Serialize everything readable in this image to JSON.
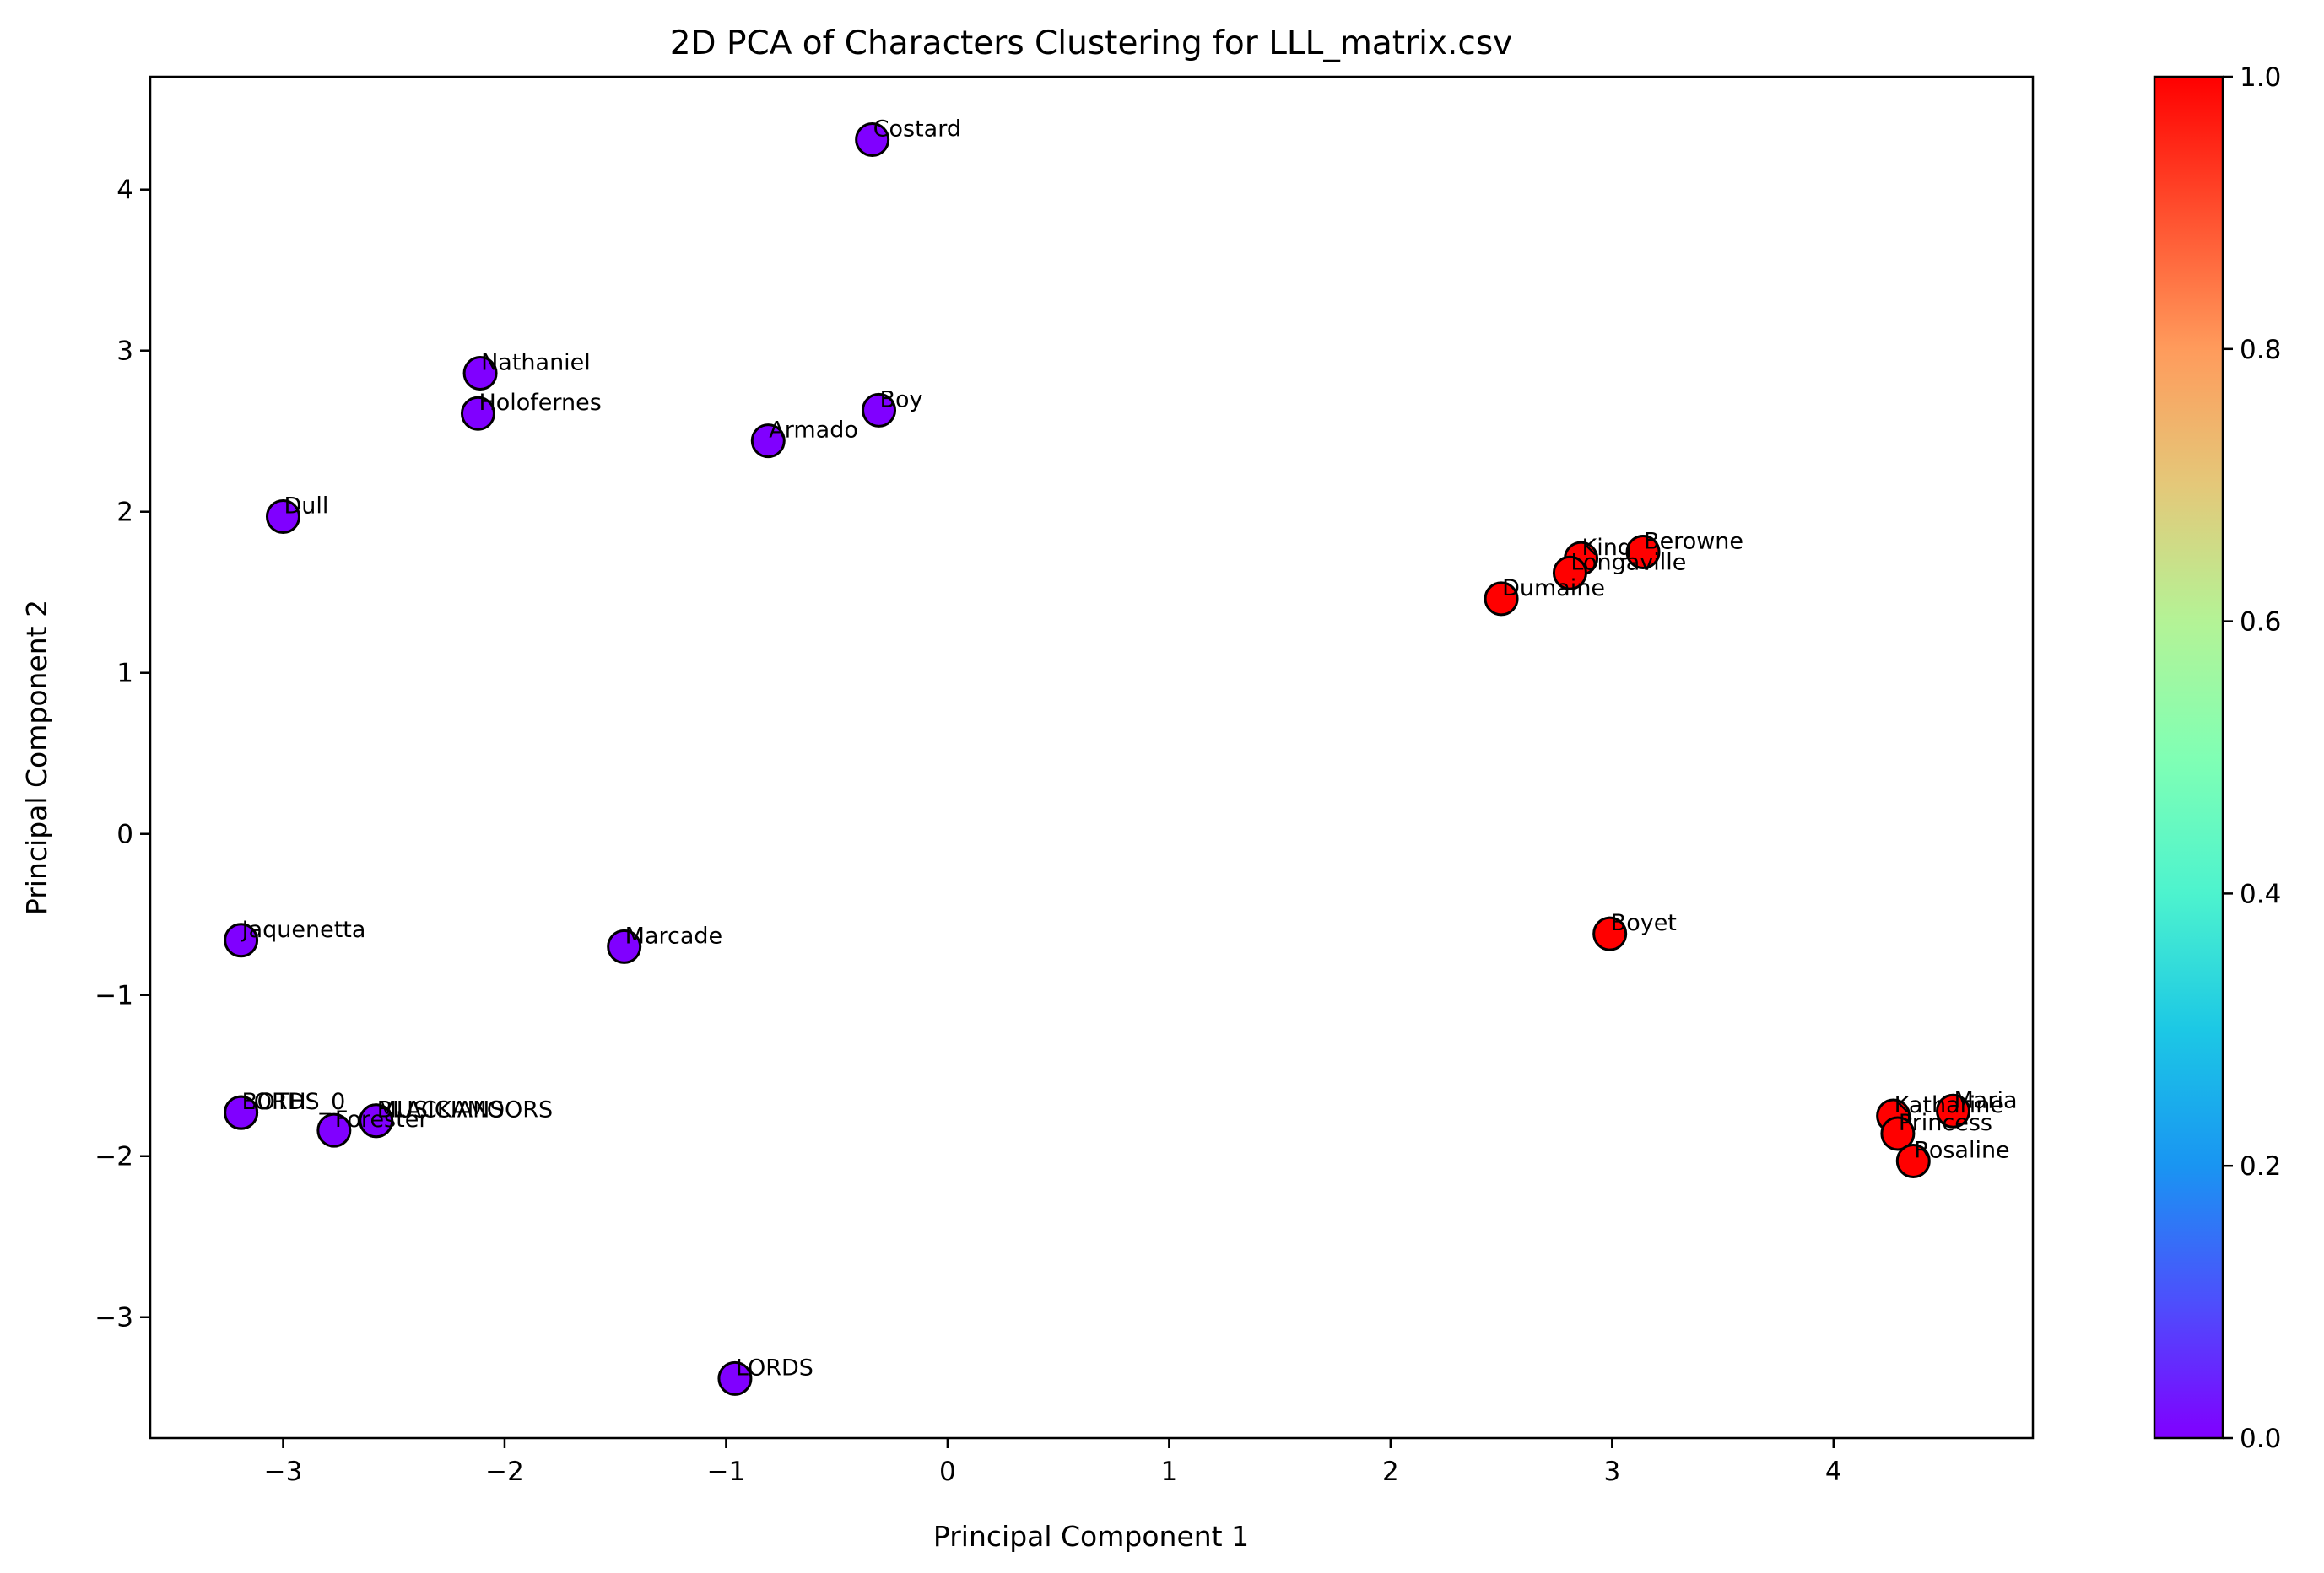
{
  "chart_data": {
    "type": "scatter",
    "title": "2D PCA of Characters Clustering for LLL_matrix.csv",
    "xlabel": "Principal Component 1",
    "ylabel": "Principal Component 2",
    "xlim": [
      -3.6,
      4.9
    ],
    "ylim": [
      -3.75,
      4.7
    ],
    "xticks": [
      -3,
      -2,
      -1,
      0,
      1,
      2,
      3,
      4
    ],
    "xtick_labels": [
      "−3",
      "−2",
      "−1",
      "0",
      "1",
      "2",
      "3",
      "4"
    ],
    "yticks": [
      -3,
      -2,
      -1,
      0,
      1,
      2,
      3,
      4
    ],
    "ytick_labels": [
      "−3",
      "−2",
      "−1",
      "0",
      "1",
      "2",
      "3",
      "4"
    ],
    "grid": false,
    "colorbar": {
      "colormap": "rainbow",
      "range": [
        0,
        1
      ],
      "ticks": [
        0,
        0.2,
        0.4,
        0.6,
        0.8,
        1.0
      ],
      "tick_labels": [
        "0.0",
        "0.2",
        "0.4",
        "0.6",
        "0.8",
        "1.0"
      ]
    },
    "cluster_colors": {
      "0": "#8000ff",
      "1": "#ff0000"
    },
    "points": [
      {
        "label": "Costard",
        "x": -0.34,
        "y": 4.31,
        "cluster": 0
      },
      {
        "label": "Nathaniel",
        "x": -2.11,
        "y": 2.86,
        "cluster": 0
      },
      {
        "label": "Holofernes",
        "x": -2.12,
        "y": 2.61,
        "cluster": 0
      },
      {
        "label": "Boy",
        "x": -0.31,
        "y": 2.63,
        "cluster": 0
      },
      {
        "label": "Armado",
        "x": -0.81,
        "y": 2.44,
        "cluster": 0
      },
      {
        "label": "Dull",
        "x": -3.0,
        "y": 1.97,
        "cluster": 0
      },
      {
        "label": "Jaquenetta",
        "x": -3.19,
        "y": -0.66,
        "cluster": 0
      },
      {
        "label": "Marcade",
        "x": -1.46,
        "y": -0.7,
        "cluster": 0
      },
      {
        "label": "BOTH",
        "x": -3.19,
        "y": -1.73,
        "cluster": 0
      },
      {
        "label": "LORDS_0",
        "x": -3.19,
        "y": -1.73,
        "cluster": 0
      },
      {
        "label": "Forester",
        "x": -2.77,
        "y": -1.84,
        "cluster": 0
      },
      {
        "label": "MUSICIANS",
        "x": -2.58,
        "y": -1.78,
        "cluster": 0
      },
      {
        "label": "BLACKAMOORS",
        "x": -2.58,
        "y": -1.78,
        "cluster": 0
      },
      {
        "label": "LORDS",
        "x": -0.96,
        "y": -3.38,
        "cluster": 0
      },
      {
        "label": "Berowne",
        "x": 3.14,
        "y": 1.75,
        "cluster": 1
      },
      {
        "label": "King",
        "x": 2.86,
        "y": 1.71,
        "cluster": 1
      },
      {
        "label": "Longaville",
        "x": 2.81,
        "y": 1.62,
        "cluster": 1
      },
      {
        "label": "Dumaine",
        "x": 2.5,
        "y": 1.46,
        "cluster": 1
      },
      {
        "label": "Boyet",
        "x": 2.99,
        "y": -0.62,
        "cluster": 1
      },
      {
        "label": "Katharine",
        "x": 4.27,
        "y": -1.75,
        "cluster": 1
      },
      {
        "label": "Maria",
        "x": 4.54,
        "y": -1.72,
        "cluster": 1
      },
      {
        "label": "Princess",
        "x": 4.29,
        "y": -1.86,
        "cluster": 1
      },
      {
        "label": "Rosaline",
        "x": 4.36,
        "y": -2.03,
        "cluster": 1
      }
    ]
  }
}
